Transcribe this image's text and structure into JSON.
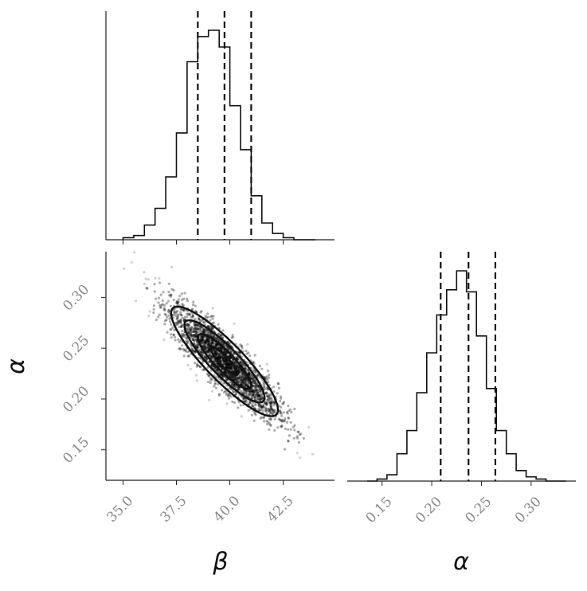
{
  "chart_data": {
    "type": "corner",
    "parameters": [
      "β",
      "α"
    ],
    "marginals": [
      {
        "parameter": "β",
        "range": [
          34.2,
          44.9
        ],
        "bin_edges": [
          35.0,
          35.5,
          36.0,
          36.5,
          37.0,
          37.5,
          38.0,
          38.5,
          39.0,
          39.5,
          40.0,
          40.5,
          41.0,
          41.5,
          42.0,
          42.5,
          43.0,
          43.5,
          44.0
        ],
        "counts": [
          1,
          2,
          7,
          15,
          30,
          51,
          85,
          97,
          100,
          92,
          64,
          43,
          21,
          8,
          3,
          1,
          0,
          0
        ],
        "quantiles": [
          38.5,
          39.75,
          41.0
        ],
        "ticks": [
          "35.0",
          "37.5",
          "40.0",
          "42.5"
        ],
        "tick_values": [
          35.0,
          37.5,
          40.0,
          42.5
        ]
      },
      {
        "parameter": "α",
        "range": [
          0.115,
          0.345
        ],
        "bin_edges": [
          0.135,
          0.145,
          0.155,
          0.165,
          0.175,
          0.185,
          0.195,
          0.205,
          0.215,
          0.225,
          0.235,
          0.245,
          0.255,
          0.265,
          0.275,
          0.285,
          0.295,
          0.305,
          0.315,
          0.325,
          0.335
        ],
        "counts": [
          0,
          1,
          3,
          13,
          24,
          42,
          61,
          79,
          91,
          100,
          90,
          69,
          44,
          24,
          13,
          5,
          2,
          1,
          0,
          0
        ],
        "quantiles": [
          0.209,
          0.237,
          0.264
        ],
        "ticks": [
          "0.15",
          "0.20",
          "0.25",
          "0.30"
        ],
        "tick_values": [
          0.15,
          0.2,
          0.25,
          0.3
        ]
      }
    ],
    "joint": {
      "x_parameter": "β",
      "y_parameter": "α",
      "x_range": [
        34.2,
        44.9
      ],
      "y_range": [
        0.12,
        0.345
      ],
      "x_ticks": [
        "35.0",
        "37.5",
        "40.0",
        "42.5"
      ],
      "x_tick_values": [
        35.0,
        37.5,
        40.0,
        42.5
      ],
      "y_ticks": [
        "0.15",
        "0.20",
        "0.25",
        "0.30"
      ],
      "y_tick_values": [
        0.15,
        0.2,
        0.25,
        0.3
      ],
      "mean": [
        39.75,
        0.237
      ],
      "std": [
        1.25,
        0.027
      ],
      "correlation": -0.88,
      "contour_levels_sigma": [
        0.5,
        1.0,
        1.5,
        2.0
      ]
    },
    "xlabels": [
      "β",
      "α"
    ],
    "ylabel": "α"
  }
}
